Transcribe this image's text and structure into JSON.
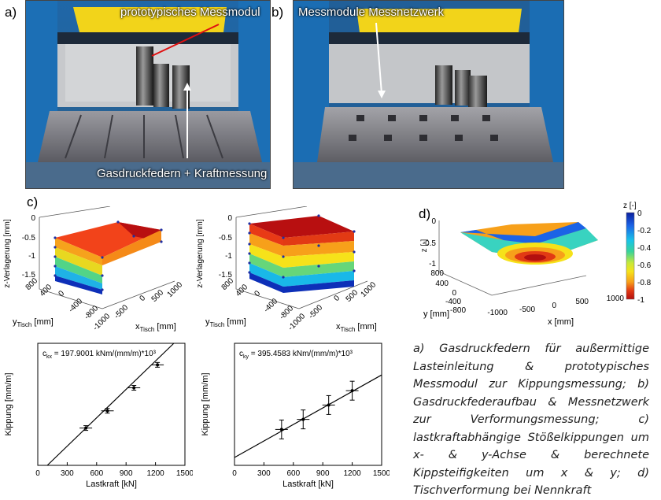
{
  "labels": {
    "a": "a)",
    "b": "b)",
    "c": "c)",
    "d": "d)"
  },
  "photos": {
    "a": {
      "label_top": "prototypisches Messmodul",
      "label_bottom": "Gasdruckfedern + Kraftmessung"
    },
    "b": {
      "label_top": "Messmodule Messnetzwerk"
    }
  },
  "surfaces": [
    {
      "zlabel": "z-Verlagerung [mm]",
      "zticks": [
        "0",
        "-0.5",
        "-1",
        "-1.5"
      ],
      "yticks": [
        "800",
        "400",
        "0",
        "-400",
        "-800"
      ],
      "xticks": [
        "-1000",
        "-500",
        "0",
        "500",
        "1000"
      ],
      "ylabel": "y",
      "ylabel_sub": "Tisch",
      "ylabel_unit": " [mm]",
      "xlabel": "x",
      "xlabel_sub": "Tisch",
      "xlabel_unit": " [mm]"
    },
    {
      "zlabel": "z-Verlagerung [mm]",
      "zticks": [
        "0",
        "-0.5",
        "-1",
        "-1.5"
      ],
      "yticks": [
        "800",
        "400",
        "0",
        "-400",
        "-800"
      ],
      "xticks": [
        "-1000",
        "-500",
        "0",
        "500",
        "1000"
      ],
      "ylabel": "y",
      "ylabel_sub": "Tisch",
      "ylabel_unit": " [mm]",
      "xlabel": "x",
      "xlabel_sub": "Tisch",
      "xlabel_unit": " [mm]"
    }
  ],
  "table_plot": {
    "zlabel": "z [-]",
    "zticks": [
      "0",
      "-0.5",
      "-1"
    ],
    "yticks": [
      "800",
      "400",
      "0",
      "-400",
      "-800"
    ],
    "ylabel": "y [mm]",
    "xticks": [
      "-1000",
      "-500",
      "0",
      "500",
      "1000"
    ],
    "xlabel": "x [mm]",
    "colorbar_title": "z [-]",
    "colorbar_ticks": [
      "0",
      "-0.2",
      "-0.4",
      "-0.6",
      "-0.8",
      "-1"
    ],
    "colors": [
      "#0b1f9e",
      "#1b63e6",
      "#19c3e8",
      "#39d39a",
      "#c6e83a",
      "#f6e21a",
      "#f7a01a",
      "#e23a14",
      "#b30f0f"
    ]
  },
  "chart_data": [
    {
      "type": "scatter",
      "title": "",
      "annotation": "c",
      "annotation_sub": "kx",
      "annotation_value": " = 197.9001 kNm/(mm/m)*10³",
      "xlabel": "Lastkraft [kN]",
      "ylabel": "Kippung [mm/m]",
      "xlim": [
        0,
        1500
      ],
      "ylim": [
        0,
        0.85
      ],
      "xticks": [
        0,
        300,
        600,
        900,
        1200,
        1500
      ],
      "x": [
        490,
        710,
        980,
        1220
      ],
      "y": [
        0.26,
        0.38,
        0.54,
        0.7
      ],
      "fit": {
        "slope": 0.000659,
        "intercept": -0.064
      }
    },
    {
      "type": "scatter",
      "title": "",
      "annotation": "c",
      "annotation_sub": "ky",
      "annotation_value": " = 395.4583 kNm/(mm/m)*10³",
      "xlabel": "Lastkraft [kN]",
      "ylabel": "Kippung [mm/m]",
      "xlim": [
        0,
        1500
      ],
      "ylim": [
        0,
        0.85
      ],
      "xticks": [
        0,
        300,
        600,
        900,
        1200,
        1500
      ],
      "x": [
        480,
        700,
        960,
        1200
      ],
      "y": [
        0.25,
        0.32,
        0.42,
        0.52
      ],
      "fit": {
        "slope": 0.000383,
        "intercept": 0.055
      }
    }
  ],
  "caption": "a) Gasdruckfedern für außermittige Lasteinleitung & prototypisches Messmodul zur Kippungsmessung; b) Gasdruckfederaufbau & Messnetzwerk zur Verformungsmessung; c) lastkraftabhängige Stößelkippungen um x- & y-Achse & berechnete Kippsteifigkeiten um x & y; d) Tischverformung bei Nennkraft"
}
